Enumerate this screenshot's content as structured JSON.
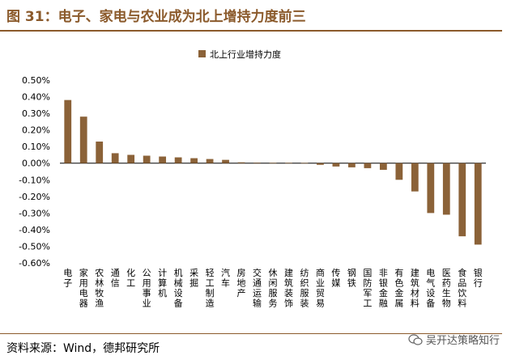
{
  "figure": {
    "title": "图 31：电子、家电与农业成为北上增持力度前三",
    "source": "资料来源：Wind，德邦研究所",
    "watermark": "吴开达策略知行"
  },
  "colors": {
    "bar": "#8B6238",
    "accent": "#8B5A2B",
    "zero_line": "#000000"
  },
  "chart_data": {
    "type": "bar",
    "title": "",
    "legend": [
      "北上行业增持力度"
    ],
    "legend_position": "top-center",
    "series": [
      {
        "name": "北上行业增持力度",
        "values": [
          0.38,
          0.28,
          0.13,
          0.06,
          0.05,
          0.045,
          0.04,
          0.035,
          0.03,
          0.025,
          0.02,
          0.005,
          0.003,
          0.002,
          0.002,
          0.001,
          -0.01,
          -0.02,
          -0.025,
          -0.03,
          -0.04,
          -0.1,
          -0.17,
          -0.3,
          -0.31,
          -0.44,
          -0.49
        ]
      }
    ],
    "categories": [
      "电子",
      "家用电器",
      "农林牧渔",
      "通信",
      "化工",
      "公用事业",
      "计算机",
      "机械设备",
      "采掘",
      "轻工制造",
      "汽车",
      "房地产",
      "交通运输",
      "休闲服务",
      "建筑装饰",
      "纺织服装",
      "商业贸易",
      "传媒",
      "钢铁",
      "国防军工",
      "非银金融",
      "有色金属",
      "建筑材料",
      "电气设备",
      "医药生物",
      "食品饮料",
      "银行"
    ],
    "ylim": [
      -0.6,
      0.5
    ],
    "yticks": [
      "0.50%",
      "0.40%",
      "0.30%",
      "0.20%",
      "0.10%",
      "0.00%",
      "-0.10%",
      "-0.20%",
      "-0.30%",
      "-0.40%",
      "-0.50%",
      "-0.60%"
    ],
    "ylabel": "",
    "xlabel": "",
    "grid": false
  }
}
